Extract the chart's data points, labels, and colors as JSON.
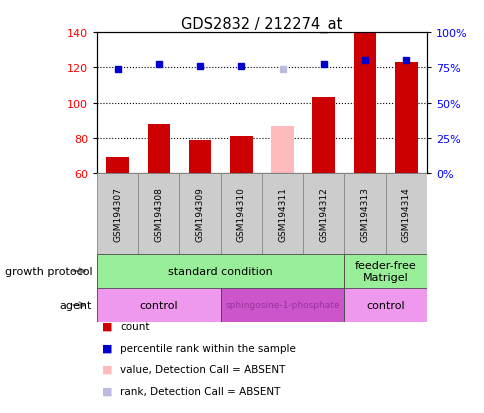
{
  "title": "GDS2832 / 212274_at",
  "samples": [
    "GSM194307",
    "GSM194308",
    "GSM194309",
    "GSM194310",
    "GSM194311",
    "GSM194312",
    "GSM194313",
    "GSM194314"
  ],
  "bar_values": [
    69,
    88,
    79,
    81,
    87,
    103,
    140,
    123
  ],
  "bar_absent": [
    false,
    false,
    false,
    false,
    true,
    false,
    false,
    false
  ],
  "rank_values": [
    119,
    122,
    121,
    121,
    119,
    122,
    124,
    124
  ],
  "rank_absent": [
    false,
    false,
    false,
    false,
    true,
    false,
    false,
    false
  ],
  "bar_color": "#cc0000",
  "bar_absent_color": "#ffbbbb",
  "rank_color": "#0000cc",
  "rank_absent_color": "#bbbbdd",
  "ylim_left": [
    60,
    140
  ],
  "ylim_right": [
    0,
    100
  ],
  "yticks_left": [
    60,
    80,
    100,
    120,
    140
  ],
  "yticks_right": [
    0,
    25,
    50,
    75,
    100
  ],
  "ytick_labels_right": [
    "0%",
    "25%",
    "50%",
    "75%",
    "100%"
  ],
  "growth_groups": [
    {
      "label": "standard condition",
      "start": 0,
      "end": 6,
      "color": "#99ee99"
    },
    {
      "label": "feeder-free\nMatrigel",
      "start": 6,
      "end": 8,
      "color": "#99ee99"
    }
  ],
  "agent_groups": [
    {
      "label": "control",
      "start": 0,
      "end": 3,
      "color": "#ee99ee"
    },
    {
      "label": "sphingosine-1-phosphate",
      "start": 3,
      "end": 6,
      "color": "#cc55cc"
    },
    {
      "label": "control",
      "start": 6,
      "end": 8,
      "color": "#ee99ee"
    }
  ],
  "legend_items": [
    {
      "label": "count",
      "color": "#cc0000"
    },
    {
      "label": "percentile rank within the sample",
      "color": "#0000cc"
    },
    {
      "label": "value, Detection Call = ABSENT",
      "color": "#ffbbbb"
    },
    {
      "label": "rank, Detection Call = ABSENT",
      "color": "#bbbbdd"
    }
  ]
}
